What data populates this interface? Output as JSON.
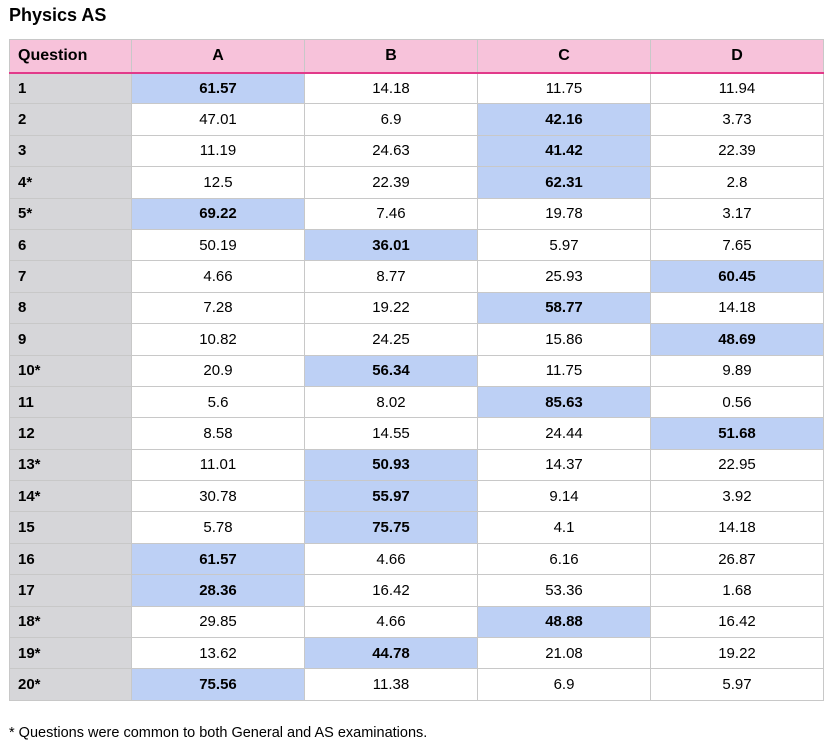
{
  "title": "Physics AS",
  "columns": [
    "Question",
    "A",
    "B",
    "C",
    "D"
  ],
  "rows": [
    {
      "q": "1",
      "vals": [
        "61.57",
        "14.18",
        "11.75",
        "11.94"
      ],
      "key": 0
    },
    {
      "q": "2",
      "vals": [
        "47.01",
        "6.9",
        "42.16",
        "3.73"
      ],
      "key": 2
    },
    {
      "q": "3",
      "vals": [
        "11.19",
        "24.63",
        "41.42",
        "22.39"
      ],
      "key": 2
    },
    {
      "q": "4*",
      "vals": [
        "12.5",
        "22.39",
        "62.31",
        "2.8"
      ],
      "key": 2
    },
    {
      "q": "5*",
      "vals": [
        "69.22",
        "7.46",
        "19.78",
        "3.17"
      ],
      "key": 0
    },
    {
      "q": "6",
      "vals": [
        "50.19",
        "36.01",
        "5.97",
        "7.65"
      ],
      "key": 1
    },
    {
      "q": "7",
      "vals": [
        "4.66",
        "8.77",
        "25.93",
        "60.45"
      ],
      "key": 3
    },
    {
      "q": "8",
      "vals": [
        "7.28",
        "19.22",
        "58.77",
        "14.18"
      ],
      "key": 2
    },
    {
      "q": "9",
      "vals": [
        "10.82",
        "24.25",
        "15.86",
        "48.69"
      ],
      "key": 3
    },
    {
      "q": "10*",
      "vals": [
        "20.9",
        "56.34",
        "11.75",
        "9.89"
      ],
      "key": 1
    },
    {
      "q": "11",
      "vals": [
        "5.6",
        "8.02",
        "85.63",
        "0.56"
      ],
      "key": 2
    },
    {
      "q": "12",
      "vals": [
        "8.58",
        "14.55",
        "24.44",
        "51.68"
      ],
      "key": 3
    },
    {
      "q": "13*",
      "vals": [
        "11.01",
        "50.93",
        "14.37",
        "22.95"
      ],
      "key": 1
    },
    {
      "q": "14*",
      "vals": [
        "30.78",
        "55.97",
        "9.14",
        "3.92"
      ],
      "key": 1
    },
    {
      "q": "15",
      "vals": [
        "5.78",
        "75.75",
        "4.1",
        "14.18"
      ],
      "key": 1
    },
    {
      "q": "16",
      "vals": [
        "61.57",
        "4.66",
        "6.16",
        "26.87"
      ],
      "key": 0
    },
    {
      "q": "17",
      "vals": [
        "28.36",
        "16.42",
        "53.36",
        "1.68"
      ],
      "key": 0
    },
    {
      "q": "18*",
      "vals": [
        "29.85",
        "4.66",
        "48.88",
        "16.42"
      ],
      "key": 2
    },
    {
      "q": "19*",
      "vals": [
        "13.62",
        "44.78",
        "21.08",
        "19.22"
      ],
      "key": 1
    },
    {
      "q": "20*",
      "vals": [
        "75.56",
        "11.38",
        "6.9",
        "5.97"
      ],
      "key": 0
    }
  ],
  "footnote": "* Questions were common to both General and AS examinations.",
  "colors": {
    "header_bg": "#f7c2da",
    "header_rule": "#e23a8a",
    "question_col_bg": "#d6d6d9",
    "highlight_bg": "#bdd0f5",
    "grid_line": "#c8c8c8"
  }
}
